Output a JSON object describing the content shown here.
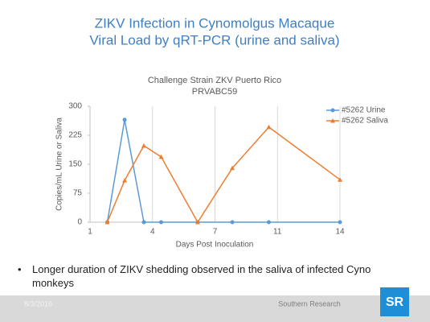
{
  "slide": {
    "title_lines": [
      "ZIKV Infection in Cynomolgus Macaque",
      "Viral Load by qRT-PCR (urine and saliva)"
    ],
    "bullet": "Longer duration of ZIKV shedding observed in the saliva of infected Cyno monkeys",
    "footer_date": "8/3/2016",
    "footer_org": "Southern Research",
    "logo": "SR"
  },
  "chart_data": {
    "type": "line",
    "title": "Challenge Strain ZKV Puerto Rico",
    "subtitle": "PRVABC59",
    "x_label": "Days Post Inoculation",
    "y_label": "Copies/mL Urine or Saliva",
    "x": [
      1.9,
      2.8,
      3.8,
      4.7,
      6.6,
      8.4,
      10.3,
      14
    ],
    "series": [
      {
        "name": "#5262 Urine",
        "color": "#5b9bd5",
        "values": [
          0,
          265,
          0,
          0,
          0,
          0,
          0,
          0
        ]
      },
      {
        "name": "#5262 Saliva",
        "color": "#ed7d31",
        "values": [
          0,
          108,
          198,
          169,
          0,
          140,
          246,
          110
        ]
      }
    ],
    "xlim": [
      1,
      14
    ],
    "xticks": [
      1,
      {
        "value": 4.25,
        "label": "4"
      },
      {
        "value": 7.5,
        "label": "7"
      },
      {
        "value": 10.75,
        "label": "11"
      },
      14
    ],
    "ylim": [
      0,
      300
    ],
    "yticks": [
      0,
      75,
      150,
      225,
      300
    ],
    "grid": "x",
    "legend": "upper-right"
  }
}
